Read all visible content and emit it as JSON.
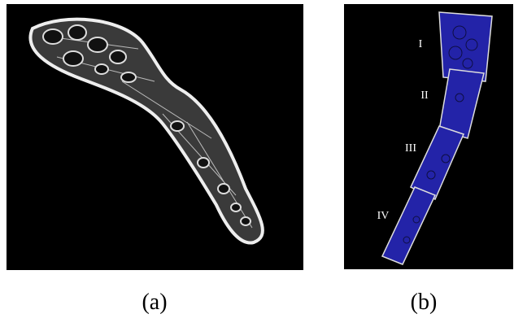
{
  "panels": [
    {
      "caption": "(a)"
    },
    {
      "caption": "(b)",
      "segments": [
        "I",
        "II",
        "III",
        "IV"
      ]
    }
  ]
}
